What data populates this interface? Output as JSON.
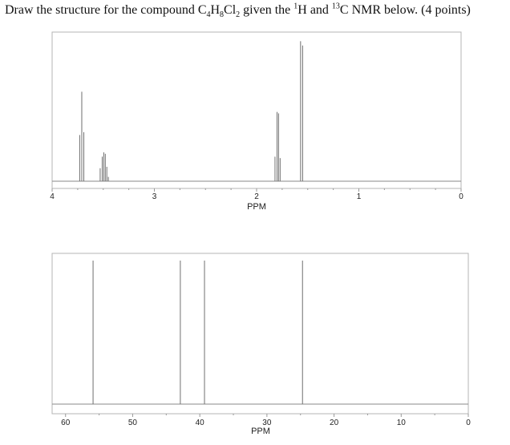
{
  "question": {
    "pre": "Draw the structure for the compound C",
    "s1": "4",
    "mid1": "H",
    "s2": "8",
    "mid2": "Cl",
    "s3": "2",
    "mid3": " given the ",
    "sup1": "1",
    "mid4": "H and ",
    "sup2": "13",
    "post": "C NMR below. (4 points)"
  },
  "colors": {
    "frame": "#b4b4b4",
    "peak": "#6f6f6f",
    "baseline": "#8a8a8a",
    "tick": "#999999"
  },
  "chart_data": [
    {
      "type": "line",
      "name": "1H NMR spectrum",
      "xlabel": "PPM",
      "xlim": [
        4,
        0
      ],
      "reversed_x": true,
      "ticks": [
        {
          "value": 4,
          "label": "4"
        },
        {
          "value": 3,
          "label": "3"
        },
        {
          "value": 2,
          "label": "2"
        },
        {
          "value": 1,
          "label": "1"
        },
        {
          "value": 0,
          "label": "0"
        }
      ],
      "peaks": [
        {
          "x": 3.73,
          "y": 0.32
        },
        {
          "x": 3.71,
          "y": 0.62
        },
        {
          "x": 3.69,
          "y": 0.34
        },
        {
          "x": 3.53,
          "y": 0.09
        },
        {
          "x": 3.51,
          "y": 0.17
        },
        {
          "x": 3.495,
          "y": 0.2
        },
        {
          "x": 3.48,
          "y": 0.19
        },
        {
          "x": 3.465,
          "y": 0.1
        },
        {
          "x": 3.45,
          "y": 0.03
        },
        {
          "x": 1.82,
          "y": 0.17
        },
        {
          "x": 1.8,
          "y": 0.48
        },
        {
          "x": 1.785,
          "y": 0.47
        },
        {
          "x": 1.77,
          "y": 0.16
        },
        {
          "x": 1.57,
          "y": 0.97
        },
        {
          "x": 1.55,
          "y": 0.94
        }
      ],
      "ymax": 1.0
    },
    {
      "type": "line",
      "name": "13C NMR spectrum",
      "xlabel": "PPM",
      "xlim": [
        62,
        0
      ],
      "reversed_x": true,
      "ticks": [
        {
          "value": 60,
          "label": "60"
        },
        {
          "value": 50,
          "label": "50"
        },
        {
          "value": 40,
          "label": "40"
        },
        {
          "value": 30,
          "label": "30"
        },
        {
          "value": 20,
          "label": "20"
        },
        {
          "value": 10,
          "label": "10"
        },
        {
          "value": 0,
          "label": "0"
        }
      ],
      "peaks": [
        {
          "x": 55.9,
          "y": 1.0
        },
        {
          "x": 42.9,
          "y": 1.0
        },
        {
          "x": 39.3,
          "y": 1.0
        },
        {
          "x": 24.7,
          "y": 1.0
        }
      ],
      "ymax": 1.0
    }
  ]
}
